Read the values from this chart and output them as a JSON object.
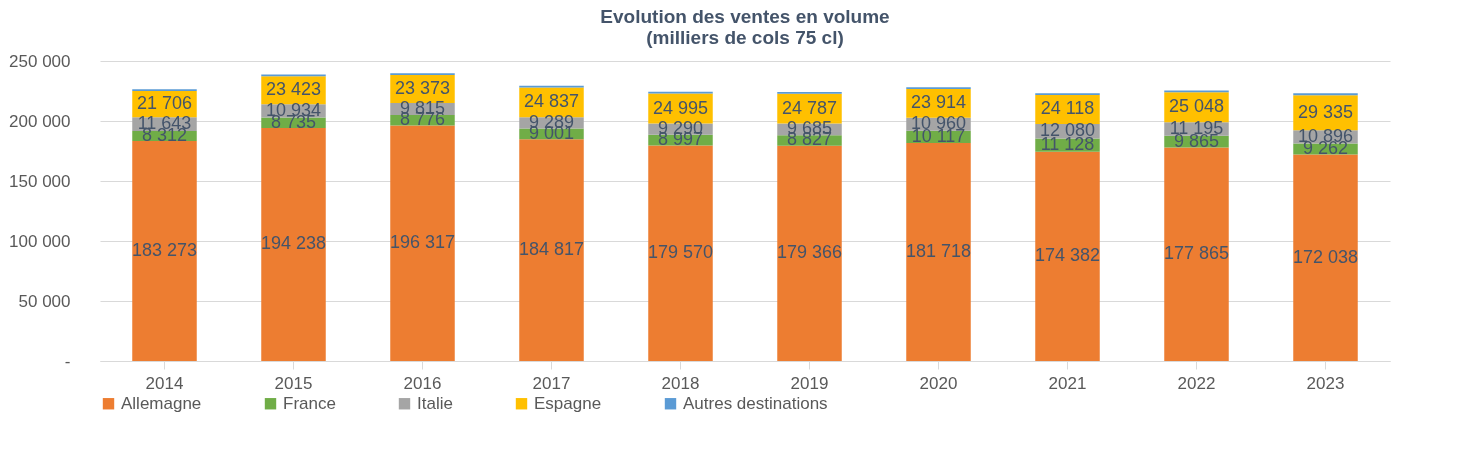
{
  "chart_data": {
    "type": "bar",
    "stacked": true,
    "title": "Evolution des ventes en volume\n(milliers de cols 75 cl)",
    "categories": [
      "2014",
      "2015",
      "2016",
      "2017",
      "2018",
      "2019",
      "2020",
      "2021",
      "2022",
      "2023"
    ],
    "series": [
      {
        "name": "Allemagne",
        "color": "#ed7d31",
        "values": [
          183273,
          194238,
          196317,
          184817,
          179570,
          179366,
          181718,
          174382,
          177865,
          172038
        ],
        "value_labels": [
          "183 273",
          "194 238",
          "196 317",
          "184 817",
          "179 570",
          "179 366",
          "181 718",
          "174 382",
          "177 865",
          "172 038"
        ]
      },
      {
        "name": "France",
        "color": "#70ad47",
        "values": [
          8312,
          8735,
          8776,
          9001,
          8997,
          8827,
          10117,
          11128,
          9865,
          9262
        ],
        "value_labels": [
          "8 312",
          "8 735",
          "8 776",
          "9 001",
          "8 997",
          "8 827",
          "10 117",
          "11 128",
          "9 865",
          "9 262"
        ]
      },
      {
        "name": "Italie",
        "color": "#a5a5a5",
        "values": [
          11643,
          10934,
          9815,
          9289,
          9290,
          9685,
          10960,
          12080,
          11195,
          10896
        ],
        "value_labels": [
          "11 643",
          "10 934",
          "9 815",
          "9 289",
          "9 290",
          "9 685",
          "10 960",
          "12 080",
          "11 195",
          "10 896"
        ]
      },
      {
        "name": "Espagne",
        "color": "#ffc000",
        "values": [
          21706,
          23423,
          23373,
          24837,
          24995,
          24787,
          23914,
          24118,
          25048,
          29335
        ],
        "value_labels": [
          "21 706",
          "23 423",
          "23 373",
          "24 837",
          "24 995",
          "24 787",
          "23 914",
          "24 118",
          "25 048",
          "29 335"
        ]
      },
      {
        "name": "Autres destinations",
        "color": "#5b9bd5",
        "values": [
          1500,
          1500,
          1500,
          1500,
          1500,
          1500,
          1500,
          1500,
          1500,
          1500
        ]
      }
    ],
    "ylim": [
      0,
      250000
    ],
    "yticks": [
      {
        "value": 0,
        "label": "-"
      },
      {
        "value": 50000,
        "label": "50 000"
      },
      {
        "value": 100000,
        "label": "100 000"
      },
      {
        "value": 150000,
        "label": "150 000"
      },
      {
        "value": 200000,
        "label": "200 000"
      },
      {
        "value": 250000,
        "label": "250 000"
      }
    ],
    "grid": "y",
    "legend": "bottom"
  }
}
